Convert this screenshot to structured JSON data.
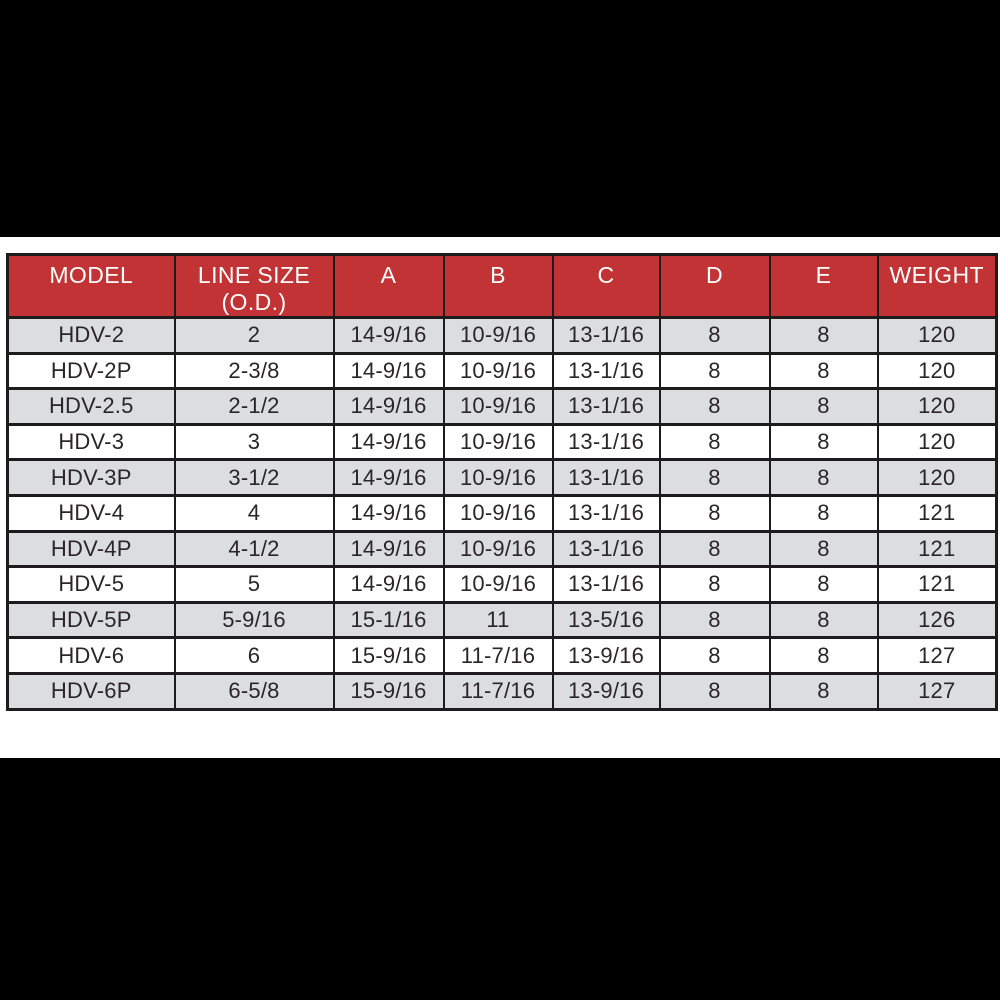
{
  "colors": {
    "top_bottom_bars": "#000000",
    "page_band": "#ffffff",
    "header_background": "#c23335",
    "header_text": "#ffffff",
    "alternate_row_background": "#dcddde",
    "grid_lines": "#1d1b1b",
    "cell_text": "#2a2627"
  },
  "chart_data": {
    "type": "table",
    "title": "",
    "columns": [
      {
        "label": "MODEL",
        "sublabel": ""
      },
      {
        "label": "LINE SIZE",
        "sublabel": "(O.D.)"
      },
      {
        "label": "A",
        "sublabel": ""
      },
      {
        "label": "B",
        "sublabel": ""
      },
      {
        "label": "C",
        "sublabel": ""
      },
      {
        "label": "D",
        "sublabel": ""
      },
      {
        "label": "E",
        "sublabel": ""
      },
      {
        "label": "WEIGHT",
        "sublabel": ""
      }
    ],
    "rows": [
      [
        "HDV-2",
        "2",
        "14-9/16",
        "10-9/16",
        "13-1/16",
        "8",
        "8",
        "120"
      ],
      [
        "HDV-2P",
        "2-3/8",
        "14-9/16",
        "10-9/16",
        "13-1/16",
        "8",
        "8",
        "120"
      ],
      [
        "HDV-2.5",
        "2-1/2",
        "14-9/16",
        "10-9/16",
        "13-1/16",
        "8",
        "8",
        "120"
      ],
      [
        "HDV-3",
        "3",
        "14-9/16",
        "10-9/16",
        "13-1/16",
        "8",
        "8",
        "120"
      ],
      [
        "HDV-3P",
        "3-1/2",
        "14-9/16",
        "10-9/16",
        "13-1/16",
        "8",
        "8",
        "120"
      ],
      [
        "HDV-4",
        "4",
        "14-9/16",
        "10-9/16",
        "13-1/16",
        "8",
        "8",
        "121"
      ],
      [
        "HDV-4P",
        "4-1/2",
        "14-9/16",
        "10-9/16",
        "13-1/16",
        "8",
        "8",
        "121"
      ],
      [
        "HDV-5",
        "5",
        "14-9/16",
        "10-9/16",
        "13-1/16",
        "8",
        "8",
        "121"
      ],
      [
        "HDV-5P",
        "5-9/16",
        "15-1/16",
        "11",
        "13-5/16",
        "8",
        "8",
        "126"
      ],
      [
        "HDV-6",
        "6",
        "15-9/16",
        "11-7/16",
        "13-9/16",
        "8",
        "8",
        "127"
      ],
      [
        "HDV-6P",
        "6-5/8",
        "15-9/16",
        "11-7/16",
        "13-9/16",
        "8",
        "8",
        "127"
      ]
    ]
  }
}
